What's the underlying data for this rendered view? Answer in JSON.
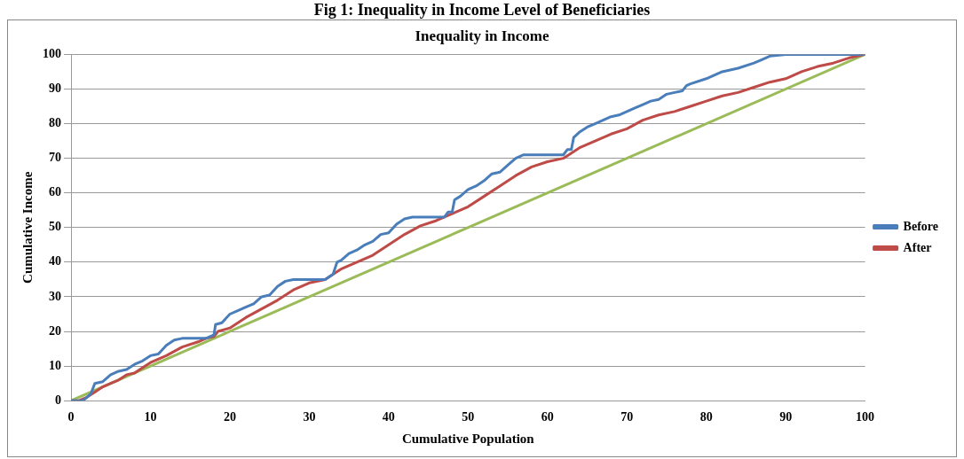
{
  "chart_data": {
    "type": "line",
    "title": "Fig 1: Inequality in Income Level of Beneficiaries",
    "subtitle": "Inequality in Income",
    "xlabel": "Cumulative Population",
    "ylabel": "Cumulative Income",
    "xlim": [
      0,
      100
    ],
    "xticks": [
      0,
      10,
      20,
      30,
      40,
      50,
      60,
      70,
      80,
      90,
      100
    ],
    "ylim": [
      0,
      100
    ],
    "yticks": [
      0,
      10,
      20,
      30,
      40,
      50,
      60,
      70,
      80,
      90,
      100
    ],
    "grid": "y",
    "legend": "right",
    "marker": "none",
    "line_style": "solid",
    "series": [
      {
        "name": "Before",
        "color": "#4a7ebb",
        "x": [
          0,
          1.5,
          2,
          2.5,
          3,
          4,
          5,
          6,
          7,
          8,
          9,
          10,
          11,
          12,
          13,
          14,
          17,
          18,
          18.2,
          19,
          20,
          21,
          22,
          23,
          24,
          25,
          26,
          27,
          28,
          32,
          33,
          33.5,
          34,
          35,
          36,
          37,
          38,
          39,
          40,
          41,
          42,
          43,
          47,
          47.5,
          48,
          48.3,
          49,
          50,
          51,
          52,
          53,
          54,
          55,
          56,
          57,
          62,
          62.5,
          63,
          63.3,
          64,
          65,
          66,
          67,
          68,
          69,
          70,
          71,
          72,
          73,
          74,
          75,
          76,
          77,
          77.5,
          78,
          80,
          82,
          84,
          86,
          87,
          88,
          90,
          100
        ],
        "values": [
          0,
          0,
          1,
          2,
          5,
          5.5,
          7.5,
          8.5,
          9,
          10.5,
          11.5,
          13,
          13.5,
          16,
          17.5,
          18,
          18,
          19,
          22,
          22.5,
          25,
          26,
          27,
          28,
          30,
          30.5,
          33,
          34.5,
          35,
          35,
          36.5,
          40,
          40.5,
          42.5,
          43.5,
          45,
          46,
          48,
          48.5,
          51,
          52.5,
          53,
          53,
          54.5,
          54.5,
          58,
          59,
          61,
          62,
          63.5,
          65.5,
          66,
          68,
          70,
          71,
          71,
          72.5,
          72.5,
          76,
          77.5,
          79,
          80,
          81,
          82,
          82.5,
          83.5,
          84.5,
          85.5,
          86.5,
          87,
          88.5,
          89,
          89.5,
          91,
          91.5,
          93,
          95,
          96,
          97.5,
          98.5,
          99.5,
          100,
          100
        ]
      },
      {
        "name": "After",
        "color": "#be4b48",
        "x": [
          0,
          1,
          2,
          3,
          4,
          5,
          6,
          7,
          8,
          9,
          10,
          12,
          14,
          16,
          17,
          18,
          18.5,
          20,
          22,
          24,
          26,
          28,
          30,
          32,
          33,
          34,
          36,
          38,
          40,
          42,
          44,
          46,
          48,
          50,
          52,
          54,
          56,
          58,
          60,
          62,
          64,
          66,
          68,
          70,
          72,
          74,
          76,
          78,
          80,
          82,
          84,
          86,
          88,
          90,
          92,
          94,
          96,
          98,
          100
        ],
        "values": [
          0,
          0,
          1,
          2.5,
          4,
          5,
          6,
          7.5,
          8,
          9.5,
          11,
          13,
          15.5,
          17,
          18,
          18.5,
          20,
          21,
          24,
          26.5,
          29,
          32,
          34,
          35,
          36.5,
          38,
          40,
          42,
          45,
          48,
          50.5,
          52,
          54,
          56,
          59,
          62,
          65,
          67.5,
          69,
          70,
          73,
          75,
          77,
          78.5,
          81,
          82.5,
          83.5,
          85,
          86.5,
          88,
          89,
          90.5,
          92,
          93,
          95,
          96.5,
          97.5,
          99,
          100
        ]
      },
      {
        "color": "#9bbb59",
        "x": [
          0,
          100
        ],
        "values": [
          0,
          100
        ]
      }
    ]
  }
}
